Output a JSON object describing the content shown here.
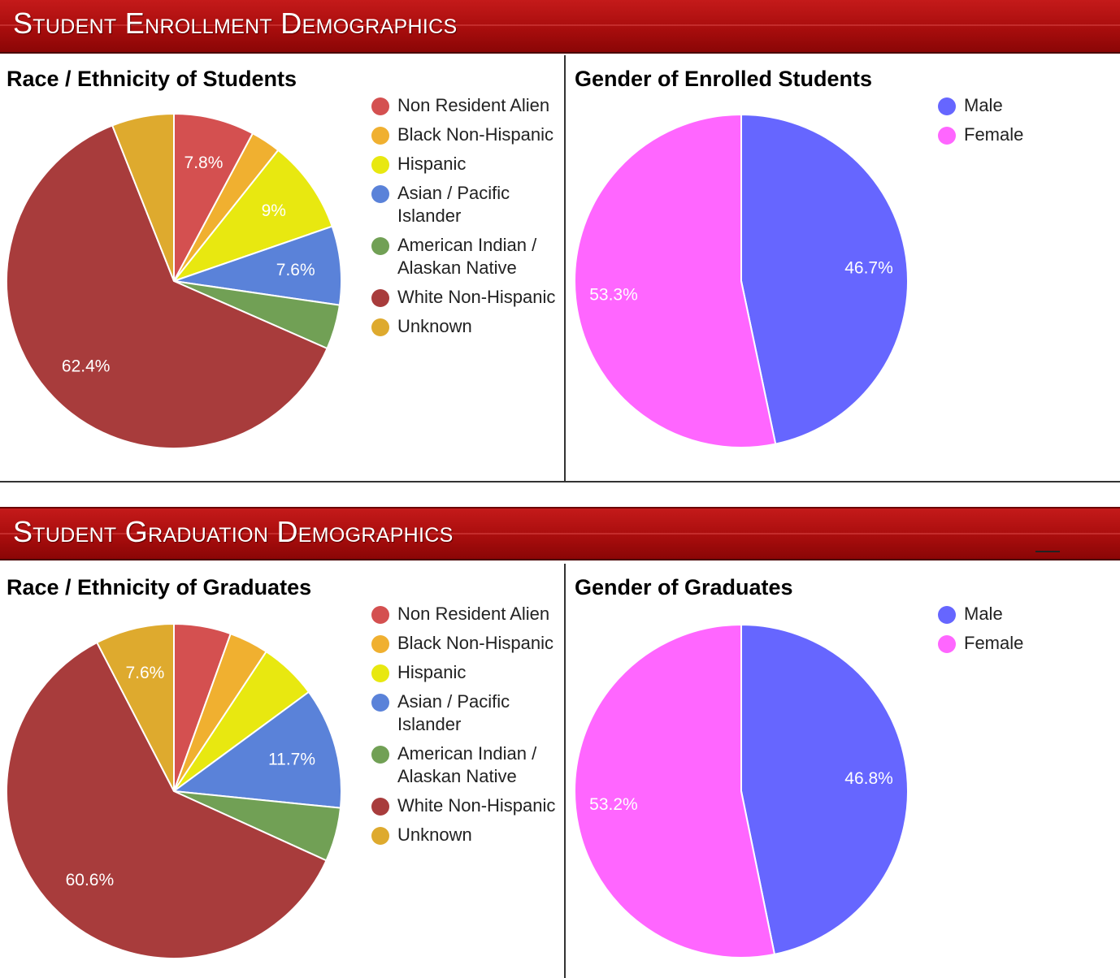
{
  "sections": [
    {
      "title": "Student Enrollment Demographics",
      "charts": [
        {
          "title": "Race / Ethnicity of Students"
        },
        {
          "title": "Gender of Enrolled Students"
        }
      ]
    },
    {
      "title": "Student Graduation Demographics",
      "charts": [
        {
          "title": "Race / Ethnicity of Graduates"
        },
        {
          "title": "Gender of Graduates"
        }
      ]
    }
  ],
  "chart_data": [
    {
      "type": "pie",
      "title": "Race / Ethnicity of Students",
      "legend": "right",
      "start_angle_deg": 0,
      "slices": [
        {
          "name": "Non Resident Alien",
          "value": 7.8,
          "label": "7.8%",
          "color": "#d45050"
        },
        {
          "name": "Black Non-Hispanic",
          "value": 2.9,
          "label": "",
          "color": "#f0b030"
        },
        {
          "name": "Hispanic",
          "value": 9,
          "label": "9%",
          "color": "#e8e810"
        },
        {
          "name": "Asian / Pacific Islander",
          "value": 7.6,
          "label": "7.6%",
          "color": "#5a82d9"
        },
        {
          "name": "American Indian / Alaskan Native",
          "value": 4.3,
          "label": "",
          "color": "#71a055"
        },
        {
          "name": "White Non-Hispanic",
          "value": 62.4,
          "label": "62.4%",
          "color": "#a83c3c"
        },
        {
          "name": "Unknown",
          "value": 6.0,
          "label": "",
          "color": "#deaa2e"
        }
      ]
    },
    {
      "type": "pie",
      "title": "Gender of Enrolled Students",
      "legend": "right",
      "start_angle_deg": 0,
      "slices": [
        {
          "name": "Male",
          "value": 46.7,
          "label": "46.7%",
          "color": "#6666ff"
        },
        {
          "name": "Female",
          "value": 53.3,
          "label": "53.3%",
          "color": "#ff66ff"
        }
      ]
    },
    {
      "type": "pie",
      "title": "Race / Ethnicity of Graduates",
      "legend": "right",
      "start_angle_deg": 0,
      "slices": [
        {
          "name": "Non Resident Alien",
          "value": 5.5,
          "label": "",
          "color": "#d45050"
        },
        {
          "name": "Black Non-Hispanic",
          "value": 3.8,
          "label": "",
          "color": "#f0b030"
        },
        {
          "name": "Hispanic",
          "value": 5.6,
          "label": "",
          "color": "#e8e810"
        },
        {
          "name": "Asian / Pacific Islander",
          "value": 11.7,
          "label": "11.7%",
          "color": "#5a82d9"
        },
        {
          "name": "American Indian / Alaskan Native",
          "value": 5.2,
          "label": "",
          "color": "#71a055"
        },
        {
          "name": "White Non-Hispanic",
          "value": 60.6,
          "label": "60.6%",
          "color": "#a83c3c"
        },
        {
          "name": "Unknown",
          "value": 7.6,
          "label": "7.6%",
          "color": "#deaa2e"
        }
      ]
    },
    {
      "type": "pie",
      "title": "Gender of Graduates",
      "legend": "right",
      "start_angle_deg": 0,
      "slices": [
        {
          "name": "Male",
          "value": 46.8,
          "label": "46.8%",
          "color": "#6666ff"
        },
        {
          "name": "Female",
          "value": 53.2,
          "label": "53.2%",
          "color": "#ff66ff"
        }
      ]
    }
  ]
}
